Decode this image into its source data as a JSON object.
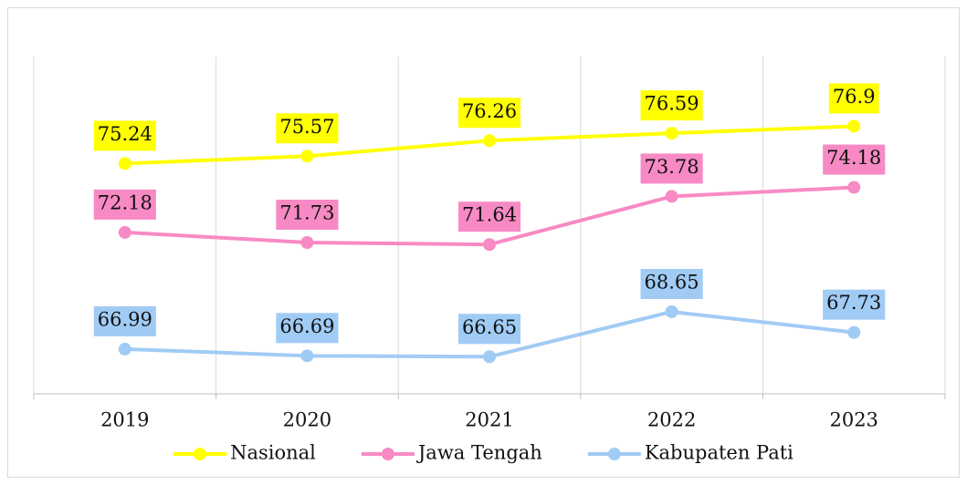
{
  "chart_data": {
    "type": "line",
    "categories": [
      "2019",
      "2020",
      "2021",
      "2022",
      "2023"
    ],
    "series": [
      {
        "name": "Nasional",
        "color": "#ffff00",
        "values": [
          75.24,
          75.57,
          76.26,
          76.59,
          76.9
        ]
      },
      {
        "name": "Jawa Tengah",
        "color": "#f78ac4",
        "values": [
          72.18,
          71.73,
          71.64,
          73.78,
          74.18
        ]
      },
      {
        "name": "Kabupaten Pati",
        "color": "#a0cbf5",
        "values": [
          66.99,
          66.69,
          66.65,
          68.65,
          67.73
        ]
      }
    ],
    "ylim": [
      65,
      80
    ],
    "grid": true,
    "legend": "bottom"
  }
}
